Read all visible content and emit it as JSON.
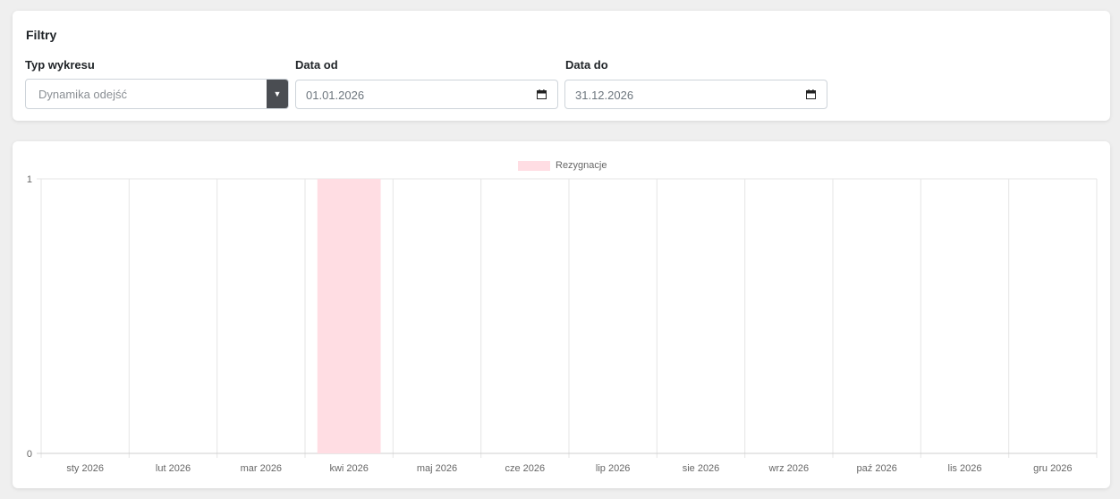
{
  "filters": {
    "title": "Filtry",
    "chart_type": {
      "label": "Typ wykresu",
      "value": "Dynamika odejść"
    },
    "date_from": {
      "label": "Data od",
      "value": "01.01.2026"
    },
    "date_to": {
      "label": "Data do",
      "value": "31.12.2026"
    }
  },
  "chart_data": {
    "type": "bar",
    "categories": [
      "sty 2026",
      "lut 2026",
      "mar 2026",
      "kwi 2026",
      "maj 2026",
      "cze 2026",
      "lip 2026",
      "sie 2026",
      "wrz 2026",
      "paź 2026",
      "lis 2026",
      "gru 2026"
    ],
    "series": [
      {
        "name": "Rezygnacje",
        "color": "#ffdde3",
        "values": [
          0,
          0,
          0,
          1,
          0,
          0,
          0,
          0,
          0,
          0,
          0,
          0
        ]
      }
    ],
    "ylim": [
      0,
      1
    ],
    "yticks": [
      "0",
      "1"
    ],
    "legend": "top-center",
    "grid": true
  }
}
